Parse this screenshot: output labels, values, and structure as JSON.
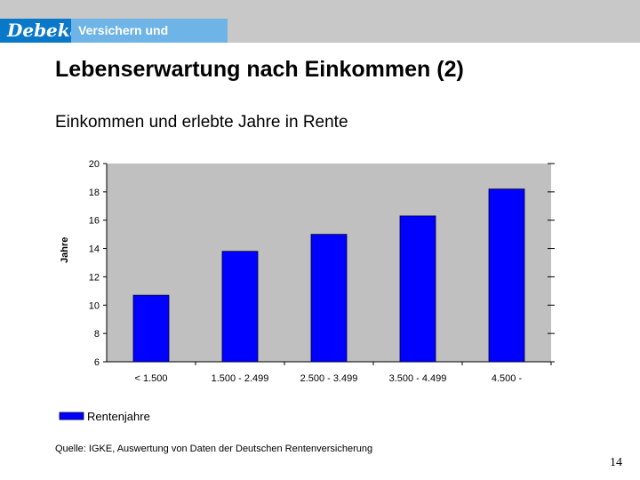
{
  "header": {
    "brand": "Debeka",
    "tagline": "Versichern und Bausparen"
  },
  "slide": {
    "title": "Lebenserwartung nach Einkommen (2)",
    "subtitle": "Einkommen und erlebte Jahre in Rente",
    "source": "Quelle: IGKE, Auswertung von Daten der Deutschen Rentenversicherung",
    "page_number": "14"
  },
  "colors": {
    "bar": "#0000ff",
    "plot_bg": "#c0c0c0"
  },
  "chart_data": {
    "type": "bar",
    "title": "",
    "xlabel": "",
    "ylabel": "Jahre",
    "categories": [
      "< 1.500",
      "1.500 - 2.499",
      "2.500 - 3.499",
      "3.500 - 4.499",
      "4.500 -"
    ],
    "series": [
      {
        "name": "Rentenjahre",
        "values": [
          10.7,
          13.8,
          15.0,
          16.3,
          18.2
        ]
      }
    ],
    "ylim": [
      6,
      20
    ],
    "yticks": [
      6,
      8,
      10,
      12,
      14,
      16,
      18,
      20
    ],
    "grid": false,
    "legend": "bottom-left"
  }
}
